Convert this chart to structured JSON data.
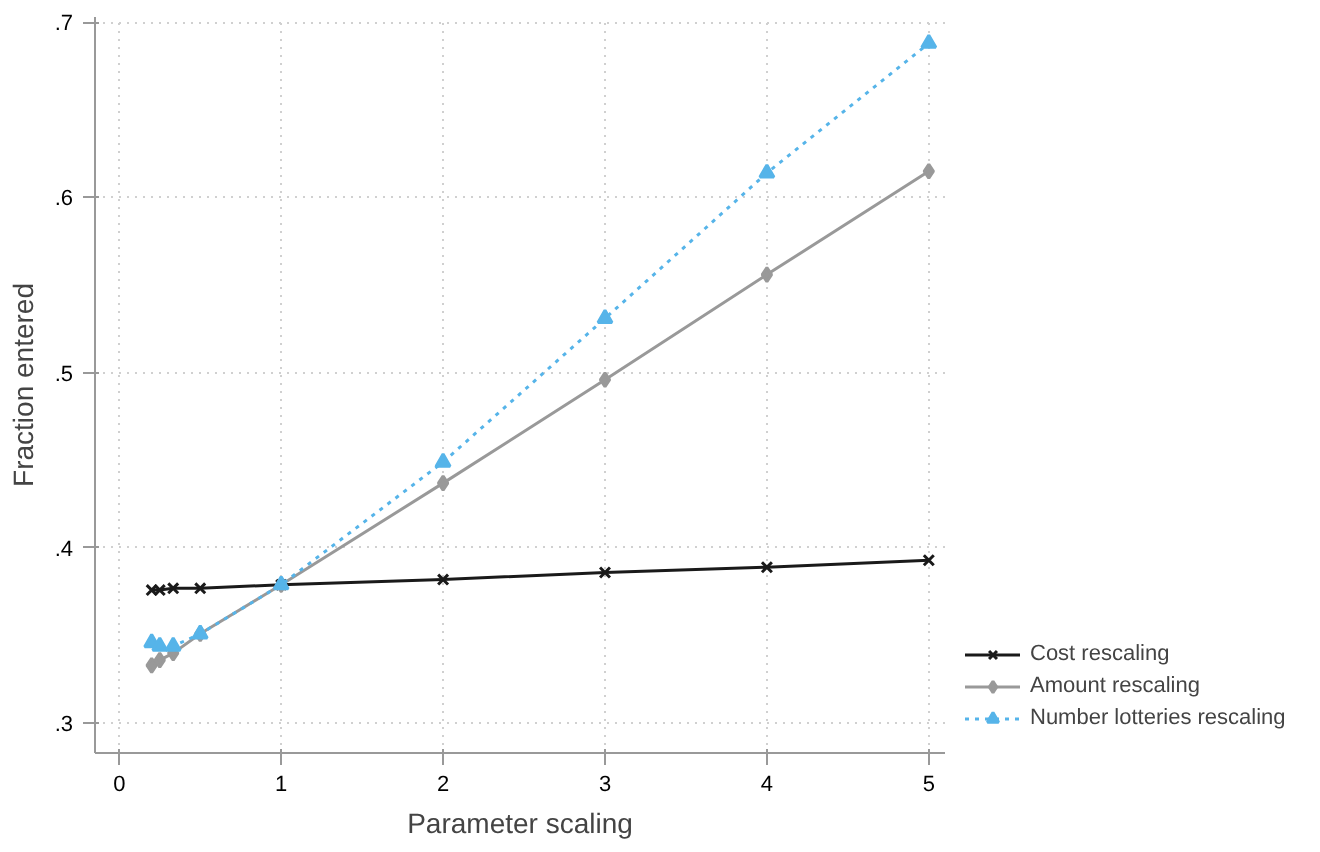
{
  "chart_data": {
    "type": "line",
    "xlabel": "Parameter scaling",
    "ylabel": "Fraction entered",
    "x": [
      0.2,
      0.25,
      0.333,
      0.5,
      1,
      2,
      3,
      4,
      5
    ],
    "xlim": [
      -0.15,
      5.1
    ],
    "xticks": [
      0,
      1,
      2,
      3,
      4,
      5
    ],
    "ylim": [
      0.283,
      0.703
    ],
    "yticks": [
      {
        "value": 0.3,
        "label": ".3"
      },
      {
        "value": 0.4,
        "label": ".4"
      },
      {
        "value": 0.5,
        "label": ".5"
      },
      {
        "value": 0.6,
        "label": ".6"
      },
      {
        "value": 0.7,
        "label": ".7"
      }
    ],
    "grid": true,
    "legend": "bottom right",
    "series": [
      {
        "name": "Cost rescaling",
        "color": "#1a1a1a",
        "marker": "cross",
        "line_style": "solid",
        "values": [
          0.376,
          0.376,
          0.377,
          0.377,
          0.379,
          0.382,
          0.386,
          0.389,
          0.393
        ]
      },
      {
        "name": "Amount rescaling",
        "color": "#999999",
        "marker": "diamond",
        "line_style": "solid",
        "values": [
          0.333,
          0.336,
          0.34,
          0.351,
          0.379,
          0.437,
          0.496,
          0.556,
          0.615
        ]
      },
      {
        "name": "Number lotteries rescaling",
        "color": "#56b4e9",
        "marker": "triangle",
        "line_style": "dotted",
        "values": [
          0.346,
          0.344,
          0.344,
          0.351,
          0.379,
          0.449,
          0.531,
          0.614,
          0.688
        ]
      }
    ]
  }
}
